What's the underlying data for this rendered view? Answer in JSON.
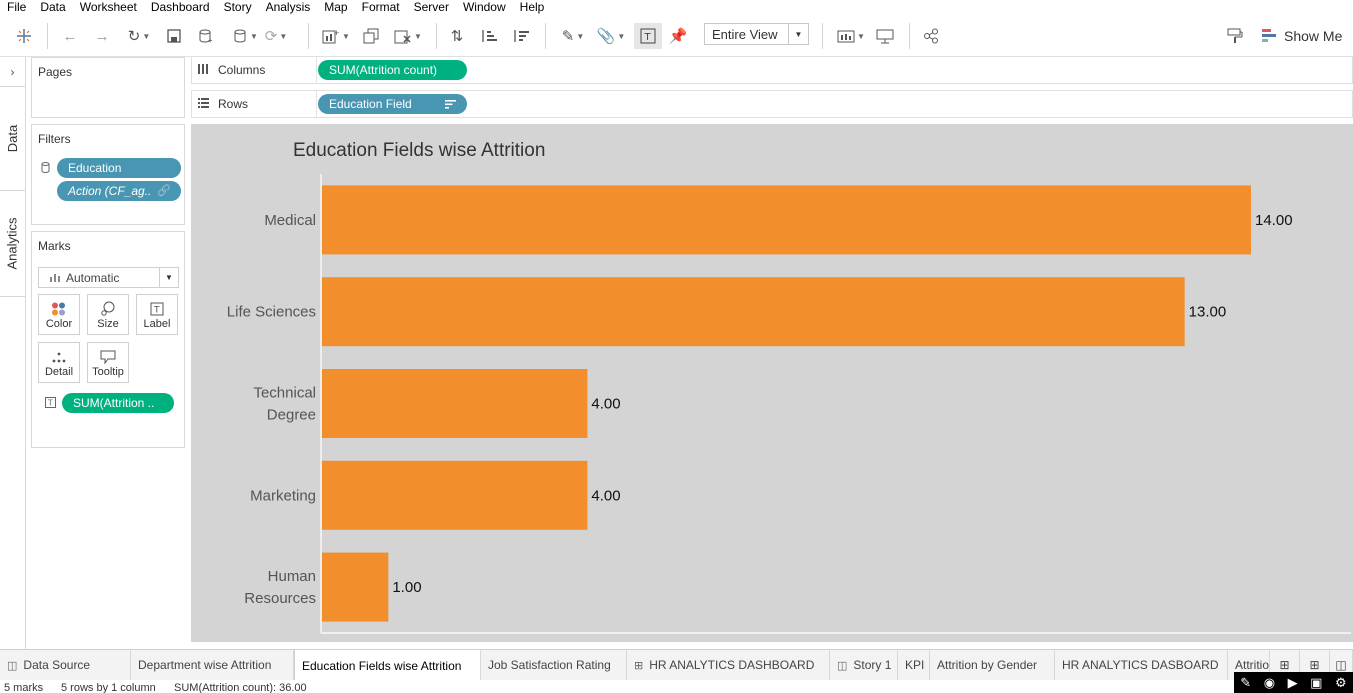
{
  "menu": [
    "File",
    "Data",
    "Worksheet",
    "Dashboard",
    "Story",
    "Analysis",
    "Map",
    "Format",
    "Server",
    "Window",
    "Help"
  ],
  "toolbar": {
    "view_select": "Entire View",
    "show_me": "Show Me"
  },
  "side_tabs": {
    "data": "Data",
    "analytics": "Analytics"
  },
  "pages": {
    "title": "Pages"
  },
  "filters": {
    "title": "Filters",
    "pills": [
      "Education",
      "Action (CF_ag.."
    ]
  },
  "marks": {
    "title": "Marks",
    "type": "Automatic",
    "buttons": [
      "Color",
      "Size",
      "Label",
      "Detail",
      "Tooltip"
    ],
    "label_pill": "SUM(Attrition .."
  },
  "shelves": {
    "columns_label": "Columns",
    "columns_pill": "SUM(Attrition count)",
    "rows_label": "Rows",
    "rows_pill": "Education Field"
  },
  "chart_data": {
    "type": "bar",
    "orientation": "horizontal",
    "title": "Education Fields wise Attrition",
    "categories": [
      "Medical",
      "Life Sciences",
      "Technical Degree",
      "Marketing",
      "Human Resources"
    ],
    "category_lines": [
      [
        "Medical"
      ],
      [
        "Life Sciences"
      ],
      [
        "Technical",
        "Degree"
      ],
      [
        "Marketing"
      ],
      [
        "Human",
        "Resources"
      ]
    ],
    "values": [
      14,
      13,
      4,
      4,
      1
    ],
    "value_labels": [
      "14.00",
      "13.00",
      "4.00",
      "4.00",
      "1.00"
    ],
    "xlim": [
      0,
      14
    ],
    "color": "#f28e2b",
    "background": "#d4d4d4",
    "grid": false,
    "legend": "none"
  },
  "sheet_tabs": [
    "Data Source",
    "Department wise Attrition",
    "Education Fields wise Attrition",
    "Job Satisfaction Rating",
    "HR ANALYTICS DASHBOARD",
    "Story 1",
    "KPI",
    "Attrition by Gender",
    "HR ANALYTICS DASBOARD",
    "Attritio"
  ],
  "active_tab": "Education Fields wise Attrition",
  "status": {
    "marks": "5 marks",
    "rows_cols": "5 rows by 1 column",
    "sum": "SUM(Attrition count): 36.00"
  },
  "colors": {
    "accent_blue": "#4996b2",
    "accent_green": "#00b180",
    "bar_orange": "#f28e2b"
  }
}
